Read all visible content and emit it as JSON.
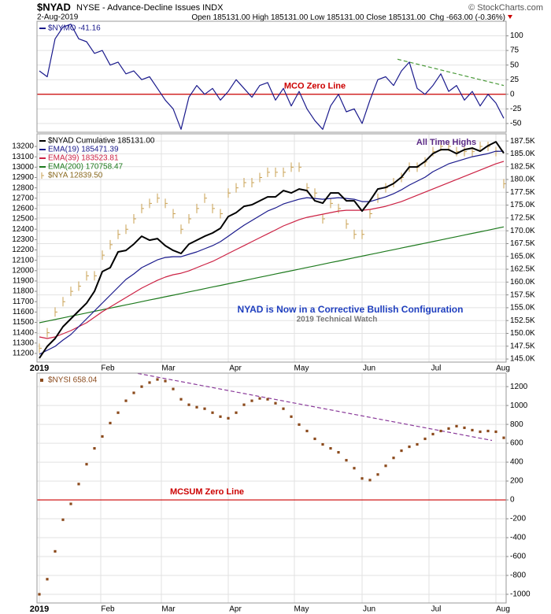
{
  "header": {
    "symbol": "$NYAD",
    "description": "NYSE - Advance-Decline Issues INDX",
    "date": "2-Aug-2019",
    "ohlc": "Open 185131.00 High 185131.00 Low 185131.00 Close 185131.00",
    "change": "Chg -663.00 (-0.36%)",
    "watermark": "© StockCharts.com"
  },
  "chart_data": [
    {
      "type": "line",
      "xlim": [
        -0.3,
        59.3
      ],
      "ylim": [
        -65,
        125
      ],
      "yticks": [
        -50,
        -25,
        0,
        25,
        50,
        75,
        100
      ],
      "grid": true,
      "series": [
        {
          "name": "$NYMO -41.16",
          "color": "#1a1a8c",
          "style": "line",
          "values": [
            40,
            30,
            95,
            115,
            120,
            95,
            90,
            70,
            75,
            50,
            55,
            35,
            40,
            25,
            30,
            10,
            -10,
            -25,
            -60,
            -5,
            15,
            0,
            10,
            -10,
            5,
            25,
            10,
            -5,
            15,
            20,
            -10,
            10,
            -20,
            5,
            -25,
            -45,
            -60,
            -20,
            0,
            -30,
            -25,
            -50,
            -10,
            25,
            30,
            15,
            40,
            55,
            10,
            0,
            15,
            35,
            5,
            15,
            -10,
            5,
            -20,
            0,
            -15,
            -41.16
          ]
        }
      ],
      "zero_line": {
        "value": 0,
        "color": "#cc0000",
        "label": "MCO Zero Line"
      },
      "trendline": {
        "x": [
          45.5,
          59
        ],
        "values": [
          60,
          15
        ],
        "color": "#4a9a3a"
      }
    },
    {
      "type": "line",
      "xlim": [
        -0.3,
        59.3
      ],
      "ylim": [
        144400,
        188900
      ],
      "yticks": [
        {
          "value": 145000,
          "label": "145.0K"
        },
        {
          "value": 147500,
          "label": "147.5K"
        },
        {
          "value": 150000,
          "label": "150.0K"
        },
        {
          "value": 152500,
          "label": "152.5K"
        },
        {
          "value": 155000,
          "label": "155.0K"
        },
        {
          "value": 157500,
          "label": "157.5K"
        },
        {
          "value": 160000,
          "label": "160.0K"
        },
        {
          "value": 162500,
          "label": "162.5K"
        },
        {
          "value": 165000,
          "label": "165.0K"
        },
        {
          "value": 167500,
          "label": "167.5K"
        },
        {
          "value": 170000,
          "label": "170.0K"
        },
        {
          "value": 172500,
          "label": "172.5K"
        },
        {
          "value": 175000,
          "label": "175.0K"
        },
        {
          "value": 177500,
          "label": "177.5K"
        },
        {
          "value": 180000,
          "label": "180.0K"
        },
        {
          "value": 182500,
          "label": "182.5K"
        },
        {
          "value": 185000,
          "label": "185.0K"
        },
        {
          "value": 187500,
          "label": "187.5K"
        }
      ],
      "y2lim": [
        11116,
        13322
      ],
      "y2ticks": [
        11200,
        11300,
        11400,
        11500,
        11600,
        11700,
        11800,
        11900,
        12000,
        12100,
        12200,
        12300,
        12400,
        12500,
        12600,
        12700,
        12800,
        12900,
        13000,
        13100,
        13200
      ],
      "xticks": [
        {
          "value": 0,
          "label": "2019"
        },
        {
          "value": 7.8,
          "label": "Feb"
        },
        {
          "value": 15.5,
          "label": "Mar"
        },
        {
          "value": 24,
          "label": "Apr"
        },
        {
          "value": 32.4,
          "label": "May"
        },
        {
          "value": 41,
          "label": "Jun"
        },
        {
          "value": 49.5,
          "label": "Jul"
        },
        {
          "value": 58,
          "label": "Aug"
        }
      ],
      "grid": true,
      "series": [
        {
          "name": "$NYA 12839.50",
          "color": "#c9a052",
          "style": "bars",
          "axis": "y2",
          "values": [
            11250,
            11400,
            11600,
            11700,
            11800,
            11850,
            11950,
            11950,
            12150,
            12250,
            12350,
            12400,
            12500,
            12600,
            12650,
            12700,
            12650,
            12550,
            12400,
            12500,
            12600,
            12700,
            12600,
            12550,
            12750,
            12800,
            12850,
            12850,
            12900,
            12950,
            12950,
            12950,
            13000,
            13000,
            12800,
            12750,
            12500,
            12650,
            12600,
            12450,
            12350,
            12350,
            12550,
            12700,
            12800,
            12850,
            12900,
            13000,
            13000,
            13050,
            13150,
            13200,
            13200,
            13150,
            13150,
            13150,
            13200,
            13200,
            13150,
            12839.5
          ]
        },
        {
          "name": "EMA(200) 170758.47",
          "color": "#1e7a1e",
          "style": "line",
          "values": [
            152070,
            152390,
            152700,
            153020,
            153340,
            153650,
            153970,
            154290,
            154600,
            154920,
            155240,
            155550,
            155870,
            156190,
            156500,
            156820,
            157140,
            157450,
            157770,
            158090,
            158400,
            158720,
            159040,
            159350,
            159670,
            159990,
            160300,
            160620,
            160940,
            161250,
            161570,
            161890,
            162200,
            162520,
            162840,
            163150,
            163470,
            163790,
            164100,
            164420,
            164740,
            165050,
            165370,
            165690,
            166000,
            166320,
            166640,
            166950,
            167270,
            167590,
            167900,
            168220,
            168540,
            168850,
            169170,
            169490,
            169800,
            170120,
            170440,
            170758.47
          ]
        },
        {
          "name": "EMA(39) 183523.81",
          "color": "#cc2244",
          "style": "line",
          "values": [
            149310,
            149000,
            149310,
            149920,
            150540,
            151310,
            152070,
            153150,
            154220,
            155140,
            156060,
            156980,
            157900,
            158820,
            159590,
            160350,
            160970,
            161430,
            161730,
            162190,
            162810,
            163420,
            164030,
            164800,
            165570,
            166340,
            167100,
            167870,
            168640,
            169400,
            170170,
            170940,
            171550,
            172160,
            172620,
            172930,
            173240,
            173540,
            173850,
            174000,
            174000,
            174000,
            174160,
            174460,
            174770,
            175230,
            175690,
            176300,
            176920,
            177530,
            178140,
            178760,
            179370,
            179990,
            180600,
            181210,
            181830,
            182440,
            183050,
            183523.81
          ]
        },
        {
          "name": "EMA(19) 185471.39",
          "color": "#1a1a8c",
          "style": "line",
          "values": [
            145940,
            146700,
            147470,
            148700,
            149770,
            151310,
            152840,
            154370,
            155910,
            157440,
            158970,
            160510,
            161580,
            162810,
            163570,
            164340,
            164800,
            164950,
            164950,
            165420,
            165880,
            166490,
            167100,
            167870,
            168940,
            170020,
            171090,
            172010,
            172930,
            173850,
            174460,
            175230,
            175690,
            176150,
            176460,
            176300,
            176150,
            176300,
            176460,
            176300,
            176150,
            175690,
            175690,
            176150,
            176610,
            177220,
            177990,
            178910,
            179680,
            180450,
            181520,
            182290,
            183050,
            183510,
            183970,
            184430,
            184740,
            185050,
            185510,
            185471.39
          ]
        },
        {
          "name": "$NYAD Cumulative 185131.00",
          "color": "#000000",
          "style": "line",
          "width": 2,
          "values": [
            145170,
            147470,
            149000,
            151300,
            152840,
            154370,
            155900,
            158200,
            162040,
            162810,
            165880,
            166180,
            167400,
            168940,
            168170,
            168480,
            167100,
            166180,
            165570,
            167400,
            168170,
            168940,
            169560,
            170480,
            172780,
            173540,
            174770,
            175080,
            175840,
            176610,
            176610,
            177840,
            177380,
            178140,
            177840,
            175840,
            175380,
            177380,
            177380,
            175840,
            175840,
            173850,
            175840,
            178140,
            178450,
            179220,
            180450,
            182440,
            182440,
            183510,
            185050,
            185810,
            185810,
            185050,
            185810,
            186120,
            185510,
            186580,
            187350,
            185131
          ]
        }
      ],
      "legend_order": [
        4,
        3,
        2,
        1,
        0
      ],
      "annotations": [
        {
          "text": "All Time Highs",
          "color": "#5b2a86"
        },
        {
          "text": "NYAD is Now in a Corrective Bullish Configuration",
          "color": "#1f3fbf"
        },
        {
          "text": "2019 Technical Watch",
          "color": "#777777"
        }
      ]
    },
    {
      "type": "line",
      "xlim": [
        -0.3,
        59.3
      ],
      "ylim": [
        -1092,
        1343
      ],
      "yticks": [
        -1000,
        -800,
        -600,
        -400,
        -200,
        0,
        200,
        400,
        600,
        800,
        1000,
        1200
      ],
      "xticks": [
        {
          "value": 0,
          "label": "2019"
        },
        {
          "value": 7.8,
          "label": "Feb"
        },
        {
          "value": 15.5,
          "label": "Mar"
        },
        {
          "value": 24,
          "label": "Apr"
        },
        {
          "value": 32.4,
          "label": "May"
        },
        {
          "value": 41,
          "label": "Jun"
        },
        {
          "value": 49.5,
          "label": "Jul"
        },
        {
          "value": 58,
          "label": "Aug"
        }
      ],
      "grid": true,
      "series": [
        {
          "name": "$NYSI 658.04",
          "color": "#8b4a1c",
          "style": "dots",
          "values": [
            -1000,
            -840,
            -545,
            -210,
            -42,
            168,
            378,
            546,
            672,
            814,
            924,
            1050,
            1134,
            1200,
            1243,
            1276,
            1259,
            1175,
            1066,
            1008,
            982,
            966,
            924,
            882,
            865,
            924,
            1008,
            1050,
            1075,
            1066,
            1024,
            966,
            882,
            798,
            730,
            647,
            588,
            546,
            504,
            420,
            336,
            227,
            210,
            269,
            361,
            445,
            521,
            563,
            588,
            647,
            697,
            730,
            756,
            781,
            764,
            739,
            722,
            730,
            722,
            658.04
          ]
        }
      ],
      "zero_line": {
        "value": 0,
        "color": "#cc0000",
        "label": "MCSUM Zero Line"
      },
      "trendline": {
        "x": [
          12.5,
          57.5
        ],
        "values": [
          1340,
          630
        ],
        "color": "#8a3a9a"
      }
    }
  ]
}
